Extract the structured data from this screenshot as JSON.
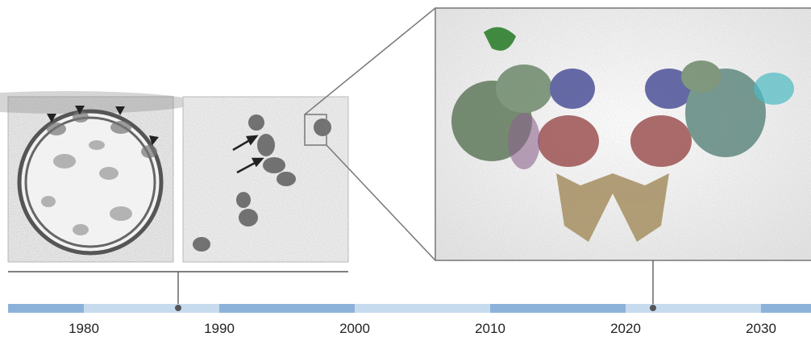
{
  "timeline": {
    "labels": [
      "1980",
      "1990",
      "2000",
      "2010",
      "2020",
      "2030"
    ]
  }
}
